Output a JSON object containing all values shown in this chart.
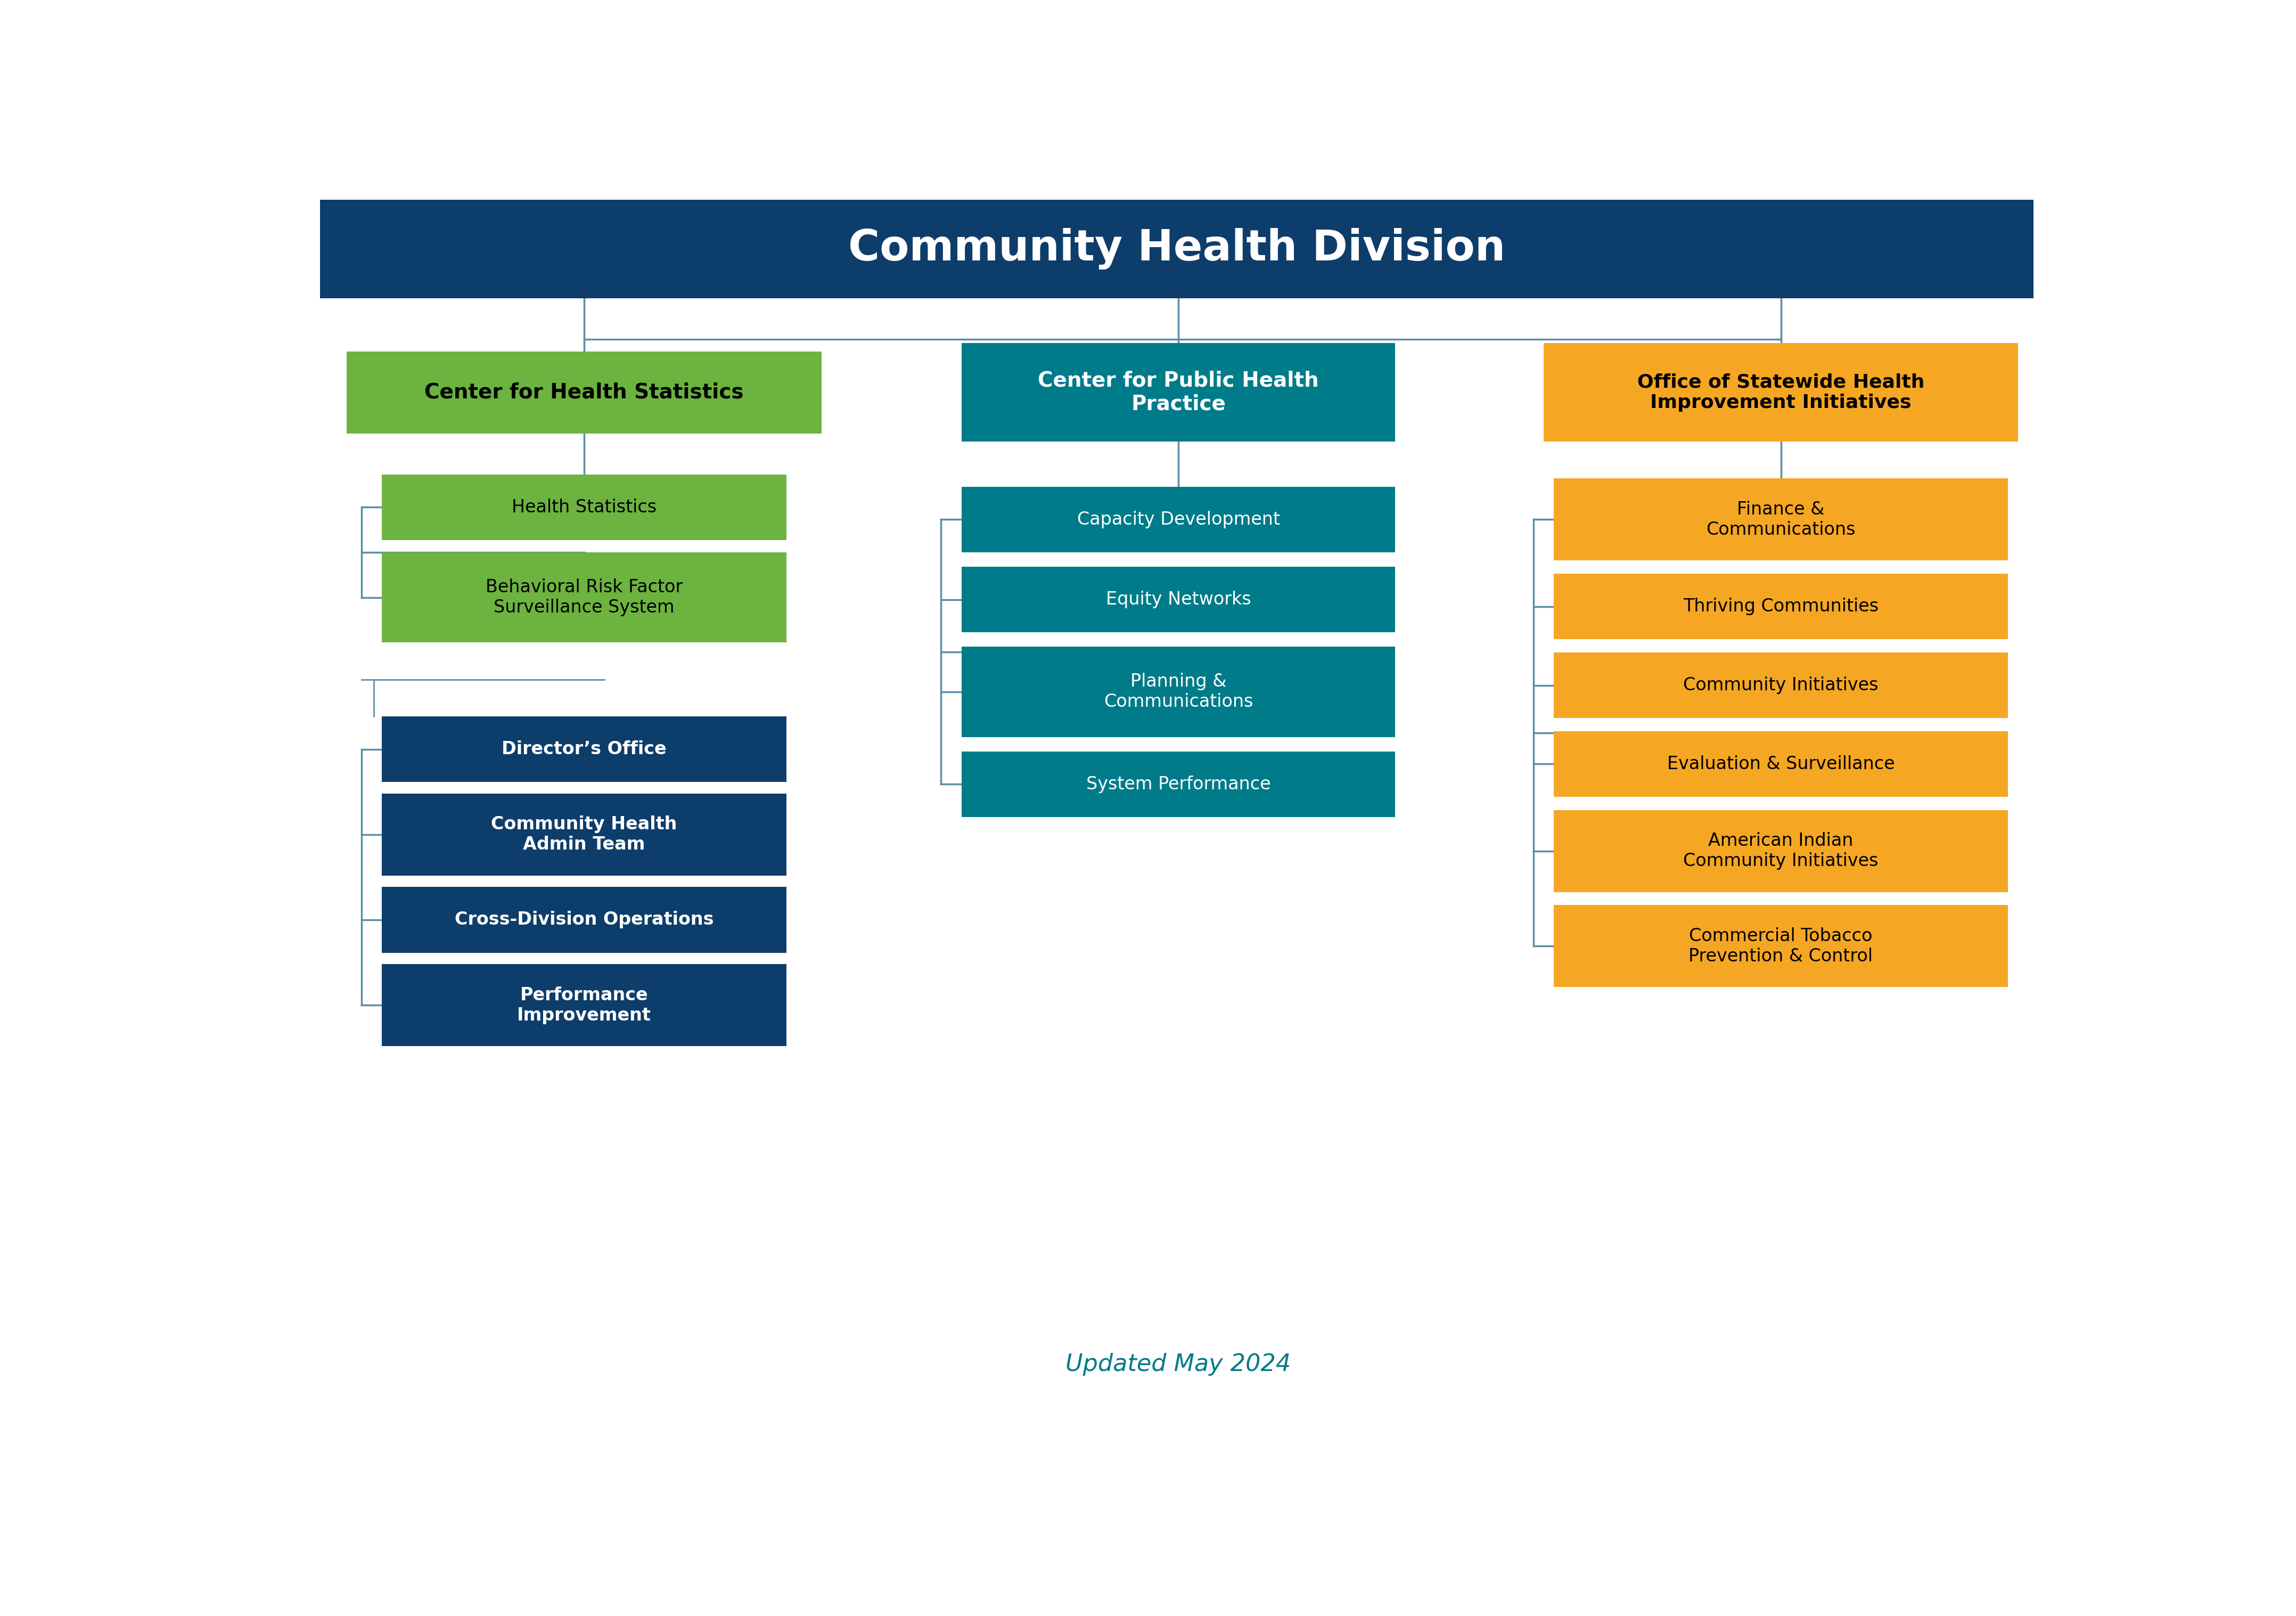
{
  "title": "Community Health Division",
  "title_bg": "#0d3d6b",
  "title_color": "#ffffff",
  "title_fontsize": 58,
  "col1_header": "Center for Health Statistics",
  "col1_header_color": "#6db33f",
  "col1_header_text_color": "#000000",
  "col1_sub_green": [
    "Health Statistics",
    "Behavioral Risk Factor\nSurveillance System"
  ],
  "col1_sub_green_color": "#6db33f",
  "col1_sub_green_text_color": "#000000",
  "col1_sub_navy": [
    "Director’s Office",
    "Community Health\nAdmin Team",
    "Cross-Division Operations",
    "Performance\nImprovement"
  ],
  "col1_sub_navy_color": "#0d3d6b",
  "col1_sub_navy_text_color": "#ffffff",
  "col2_header": "Center for Public Health\nPractice",
  "col2_header_color": "#007b8a",
  "col2_header_text_color": "#ffffff",
  "col2_subs": [
    "Capacity Development",
    "Equity Networks",
    "Planning &\nCommunications",
    "System Performance"
  ],
  "col2_sub_color": "#007b8a",
  "col2_sub_text_color": "#ffffff",
  "col3_header": "Office of Statewide Health\nImprovement Initiatives",
  "col3_header_color": "#f5a623",
  "col3_header_text_color": "#000000",
  "col3_subs": [
    "Finance &\nCommunications",
    "Thriving Communities",
    "Community Initiatives",
    "Evaluation & Surveillance",
    "American Indian\nCommunity Initiatives",
    "Commercial Tobacco\nPrevention & Control"
  ],
  "col3_sub_color": "#f5a623",
  "col3_sub_text_color": "#000000",
  "connector_color": "#5a8fa8",
  "footer_text": "Updated May 2024",
  "footer_color": "#007b8a",
  "footer_fontsize": 32,
  "bg_color": "#ffffff"
}
